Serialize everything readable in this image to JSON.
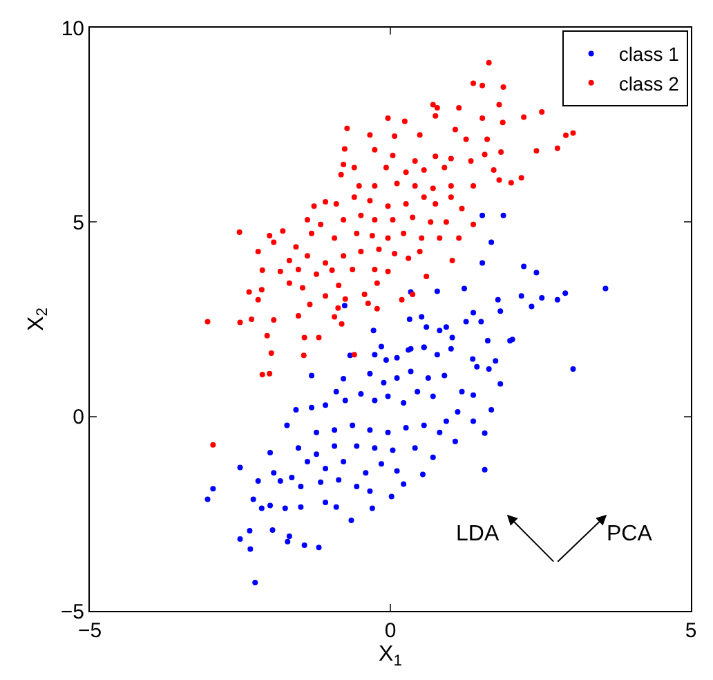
{
  "chart_data": {
    "type": "scatter",
    "xlabel": "X$_{1}$",
    "ylabel": "X$_{2}$",
    "xlim": [
      -5,
      5
    ],
    "ylim": [
      -5,
      10
    ],
    "xticks": [
      -5,
      0,
      5
    ],
    "yticks": [
      -5,
      0,
      5,
      10
    ],
    "legend": "top right",
    "marker": "circle",
    "annotations": [
      "LDA",
      "PCA"
    ],
    "series": [
      {
        "name": "class 1",
        "color": "#0000ff",
        "x": [
          1.53,
          1.88,
          1.68,
          1.53,
          2.22,
          2.43,
          3.58,
          2.91,
          2.78,
          2.52,
          2.18,
          2.35,
          1.23,
          0.78,
          0.34,
          1.79,
          1.83,
          1.38,
          1.26,
          1.51,
          0.32,
          0.52,
          0.6,
          0.93,
          0.82,
          1.03,
          1.62,
          1.99,
          -0.28,
          -0.76,
          -0.15,
          0.34,
          0.56,
          3.04,
          2.03,
          1.83,
          1.64,
          1.44,
          1.37,
          1.75,
          1.01,
          0.78,
          0.56,
          0.3,
          0.11,
          -0.07,
          -0.26,
          -0.67,
          -1.31,
          -0.78,
          -0.34,
          -0.11,
          0.11,
          0.34,
          0.63,
          0.9,
          1.19,
          1.38,
          1.68,
          1.38,
          1.57,
          1.57,
          1.12,
          0.93,
          0.71,
          0.45,
          0.22,
          -0.04,
          -0.26,
          -0.49,
          -0.75,
          -0.9,
          -1.08,
          -1.31,
          -1.57,
          -1.72,
          -1.23,
          -0.93,
          -0.63,
          -0.34,
          -0.04,
          0.26,
          0.56,
          0.82,
          1.08,
          -1.53,
          -1.23,
          -0.93,
          -0.56,
          -0.26,
          0.04,
          0.41,
          0.71,
          -2.5,
          -2.0,
          -1.94,
          -1.64,
          -1.38,
          -1.08,
          -0.78,
          -0.41,
          -0.15,
          0.11,
          0.54,
          -2.2,
          -1.83,
          -1.49,
          -1.16,
          -0.86,
          -0.56,
          -0.34,
          0.02,
          0.22,
          -2.95,
          -3.04,
          -2.28,
          -2.14,
          -2.0,
          -1.75,
          -1.49,
          -1.08,
          -0.9,
          -0.3,
          -0.65,
          -2.5,
          -2.34,
          -2.33,
          -1.96,
          -1.68,
          -1.71,
          -1.43,
          -1.19,
          -2.25
        ],
        "values": [
          5.17,
          5.17,
          4.48,
          3.95,
          3.86,
          3.7,
          3.29,
          3.17,
          3.0,
          3.05,
          3.1,
          2.83,
          3.29,
          3.22,
          3.2,
          3.0,
          2.71,
          2.67,
          2.44,
          2.44,
          2.5,
          2.56,
          2.3,
          2.3,
          2.21,
          2.03,
          1.95,
          1.95,
          2.21,
          2.85,
          1.8,
          1.74,
          1.78,
          1.22,
          1.98,
          0.84,
          1.22,
          1.28,
          1.48,
          1.43,
          1.74,
          1.59,
          1.78,
          1.71,
          1.51,
          1.45,
          1.59,
          1.57,
          1.05,
          0.97,
          1.1,
          0.87,
          0.99,
          1.16,
          0.99,
          1.05,
          0.64,
          0.55,
          0.17,
          -0.12,
          -0.43,
          -1.37,
          0.12,
          -0.12,
          0.52,
          0.64,
          0.35,
          0.52,
          0.41,
          0.58,
          0.41,
          0.64,
          0.29,
          0.23,
          0.17,
          -0.23,
          -0.41,
          -0.35,
          -0.23,
          -0.35,
          -0.41,
          -0.29,
          -0.23,
          -0.41,
          -0.64,
          -0.81,
          -0.97,
          -0.76,
          -0.76,
          -0.81,
          -0.87,
          -0.81,
          -1.05,
          -1.31,
          -0.93,
          -1.45,
          -1.57,
          -1.16,
          -1.34,
          -1.16,
          -1.45,
          -1.22,
          -1.4,
          -1.49,
          -1.66,
          -1.66,
          -1.8,
          -1.69,
          -1.63,
          -1.8,
          -1.92,
          -2.06,
          -1.74,
          -1.86,
          -2.13,
          -2.13,
          -2.36,
          -2.29,
          -2.36,
          -2.33,
          -2.21,
          -2.33,
          -2.36,
          -2.67,
          -3.15,
          -2.94,
          -3.41,
          -2.92,
          -3.08,
          -3.22,
          -3.31,
          -3.37,
          -4.27
        ]
      },
      {
        "name": "class 2",
        "color": "#ff0000",
        "x": [
          1.64,
          1.38,
          1.53,
          1.88,
          1.81,
          0.71,
          0.78,
          1.14,
          -0.04,
          0.24,
          0.75,
          1.53,
          1.87,
          2.22,
          2.52,
          -0.72,
          -0.34,
          0.07,
          0.49,
          1.08,
          2.92,
          3.04,
          2.78,
          2.43,
          1.61,
          1.26,
          -0.76,
          -0.26,
          0.04,
          0.41,
          0.75,
          1.01,
          1.57,
          1.84,
          -0.78,
          -0.6,
          -0.07,
          0.26,
          0.56,
          0.9,
          1.34,
          1.72,
          2.18,
          2.01,
          1.81,
          -0.82,
          -0.52,
          -0.26,
          0.11,
          0.41,
          0.71,
          1.01,
          1.38,
          -1.08,
          -1.27,
          -0.9,
          -0.6,
          -0.34,
          -0.04,
          0.26,
          0.56,
          0.75,
          1.01,
          1.19,
          -1.38,
          -1.16,
          -0.78,
          -0.49,
          -0.26,
          0.04,
          0.37,
          0.67,
          0.93,
          1.38,
          -2.51,
          -2.01,
          -1.79,
          -1.57,
          -1.31,
          -0.93,
          -0.56,
          -0.3,
          -0.04,
          0.22,
          0.52,
          0.82,
          1.14,
          -2.2,
          -1.94,
          -1.68,
          -1.38,
          -1.08,
          -0.78,
          -0.49,
          -0.19,
          0.07,
          0.3,
          0.49,
          1.03,
          -2.13,
          -1.83,
          -1.53,
          -1.23,
          -0.97,
          -0.63,
          -0.26,
          -0.04,
          0.6,
          -2.35,
          -2.14,
          -1.68,
          -1.46,
          -1.08,
          -0.86,
          -0.43,
          -0.22,
          -2.2,
          -1.34,
          -0.75,
          0.19,
          0.37,
          -0.87,
          -0.22,
          -0.37,
          -1.53,
          -0.93,
          -0.81,
          -3.04,
          -2.5,
          -2.31,
          -1.94,
          -2.05,
          -1.43,
          -1.19,
          -2.95,
          -2.13,
          -2.01,
          -1.98,
          -1.44,
          -0.6
        ],
        "values": [
          9.1,
          8.57,
          8.51,
          8.47,
          8.02,
          8.02,
          7.94,
          7.94,
          7.67,
          7.59,
          7.73,
          7.67,
          7.56,
          7.7,
          7.83,
          7.41,
          7.24,
          7.21,
          7.24,
          7.38,
          7.23,
          7.29,
          6.9,
          6.83,
          7.13,
          7.13,
          6.88,
          6.86,
          6.71,
          6.57,
          6.69,
          6.63,
          6.74,
          6.8,
          6.48,
          6.4,
          6.4,
          6.28,
          6.34,
          6.4,
          6.57,
          6.34,
          6.14,
          6.01,
          6.08,
          6.22,
          5.93,
          5.93,
          5.99,
          5.93,
          5.87,
          5.93,
          5.93,
          5.52,
          5.41,
          5.47,
          5.64,
          5.55,
          5.41,
          5.47,
          5.64,
          5.47,
          5.64,
          5.35,
          5.06,
          4.94,
          5.06,
          5.17,
          5.06,
          5.06,
          5.12,
          5.0,
          5.0,
          4.94,
          4.74,
          4.65,
          4.77,
          4.36,
          4.71,
          4.59,
          4.71,
          4.65,
          4.59,
          4.71,
          4.59,
          4.59,
          4.59,
          4.24,
          4.48,
          4.01,
          4.13,
          3.95,
          4.13,
          4.24,
          4.3,
          4.19,
          4.07,
          4.24,
          4.01,
          3.76,
          3.73,
          3.78,
          3.66,
          3.76,
          3.78,
          3.78,
          3.73,
          3.6,
          3.2,
          3.26,
          3.43,
          3.31,
          3.1,
          3.37,
          3.14,
          3.43,
          3.0,
          2.88,
          3.02,
          3.0,
          3.14,
          2.79,
          2.77,
          2.91,
          2.59,
          2.56,
          2.38,
          2.44,
          2.42,
          2.5,
          2.48,
          2.08,
          2.03,
          2.03,
          -0.73,
          1.08,
          1.1,
          1.63,
          1.57,
          1.59
        ]
      }
    ]
  }
}
